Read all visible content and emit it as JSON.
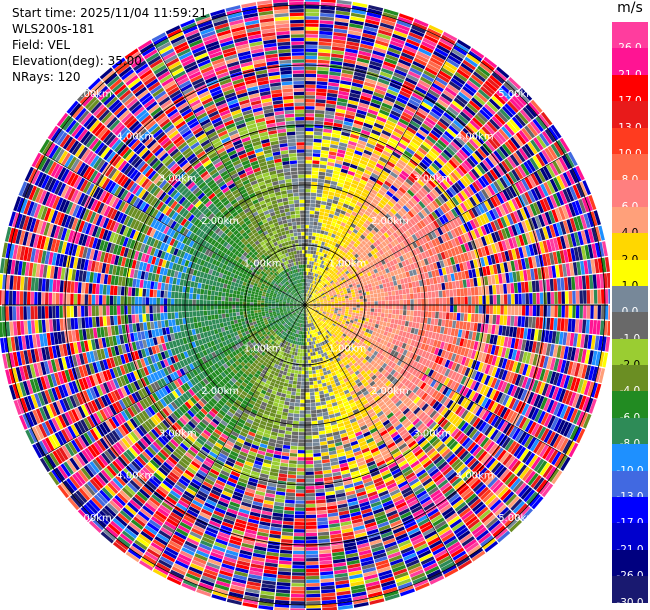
{
  "info": {
    "start_time": "Start time: 2025/11/04 11:59:21",
    "instrument": "WLS200s-181",
    "field": "Field: VEL",
    "elevation": "Elevation(deg): 35.00",
    "nrays": "NRays: 120"
  },
  "colorbar": {
    "unit": "m/s",
    "ticks": [
      "26.0",
      "21.0",
      "17.0",
      "13.0",
      "10.0",
      "8.0",
      "6.0",
      "4.0",
      "2.0",
      "1.0",
      "0.0",
      "-1.0",
      "-2.0",
      "-4.0",
      "-6.0",
      "-8.0",
      "-10.0",
      "-13.0",
      "-17.0",
      "-21.0",
      "-26.0",
      "-30.0"
    ],
    "colors": [
      "#ff3d9e",
      "#ff1493",
      "#ff0000",
      "#e81a1a",
      "#ff3b1f",
      "#ff6a4a",
      "#ff7f7f",
      "#ffa07a",
      "#ffd700",
      "#ffff00",
      "#778899",
      "#696969",
      "#9acd32",
      "#6b8e23",
      "#228b22",
      "#2e8b57",
      "#1e90ff",
      "#4169e1",
      "#0000ff",
      "#0000cd",
      "#000080",
      "#191970"
    ]
  },
  "chart_data": {
    "type": "heatmap",
    "projection": "polar PPI",
    "field": "VEL",
    "unit": "m/s",
    "n_rays": 120,
    "elevation_deg": 35.0,
    "range_rings_km": [
      1.0,
      2.0,
      3.0,
      4.0,
      5.0
    ],
    "range_ring_labels": [
      "1.00km",
      "2.00km",
      "3.00km",
      "4.00km",
      "5.00km"
    ],
    "color_levels": [
      -30,
      -26,
      -21,
      -17,
      -13,
      -10,
      -8,
      -6,
      -4,
      -2,
      -1,
      0,
      1,
      2,
      4,
      6,
      8,
      10,
      13,
      17,
      21,
      26
    ],
    "pattern": {
      "near_range_west": "negative (green/blue, -1 to -10 m/s)",
      "near_range_east": "positive (yellow/orange, 1 to 10 m/s)",
      "beyond_3km": "noisy, all colors"
    }
  }
}
